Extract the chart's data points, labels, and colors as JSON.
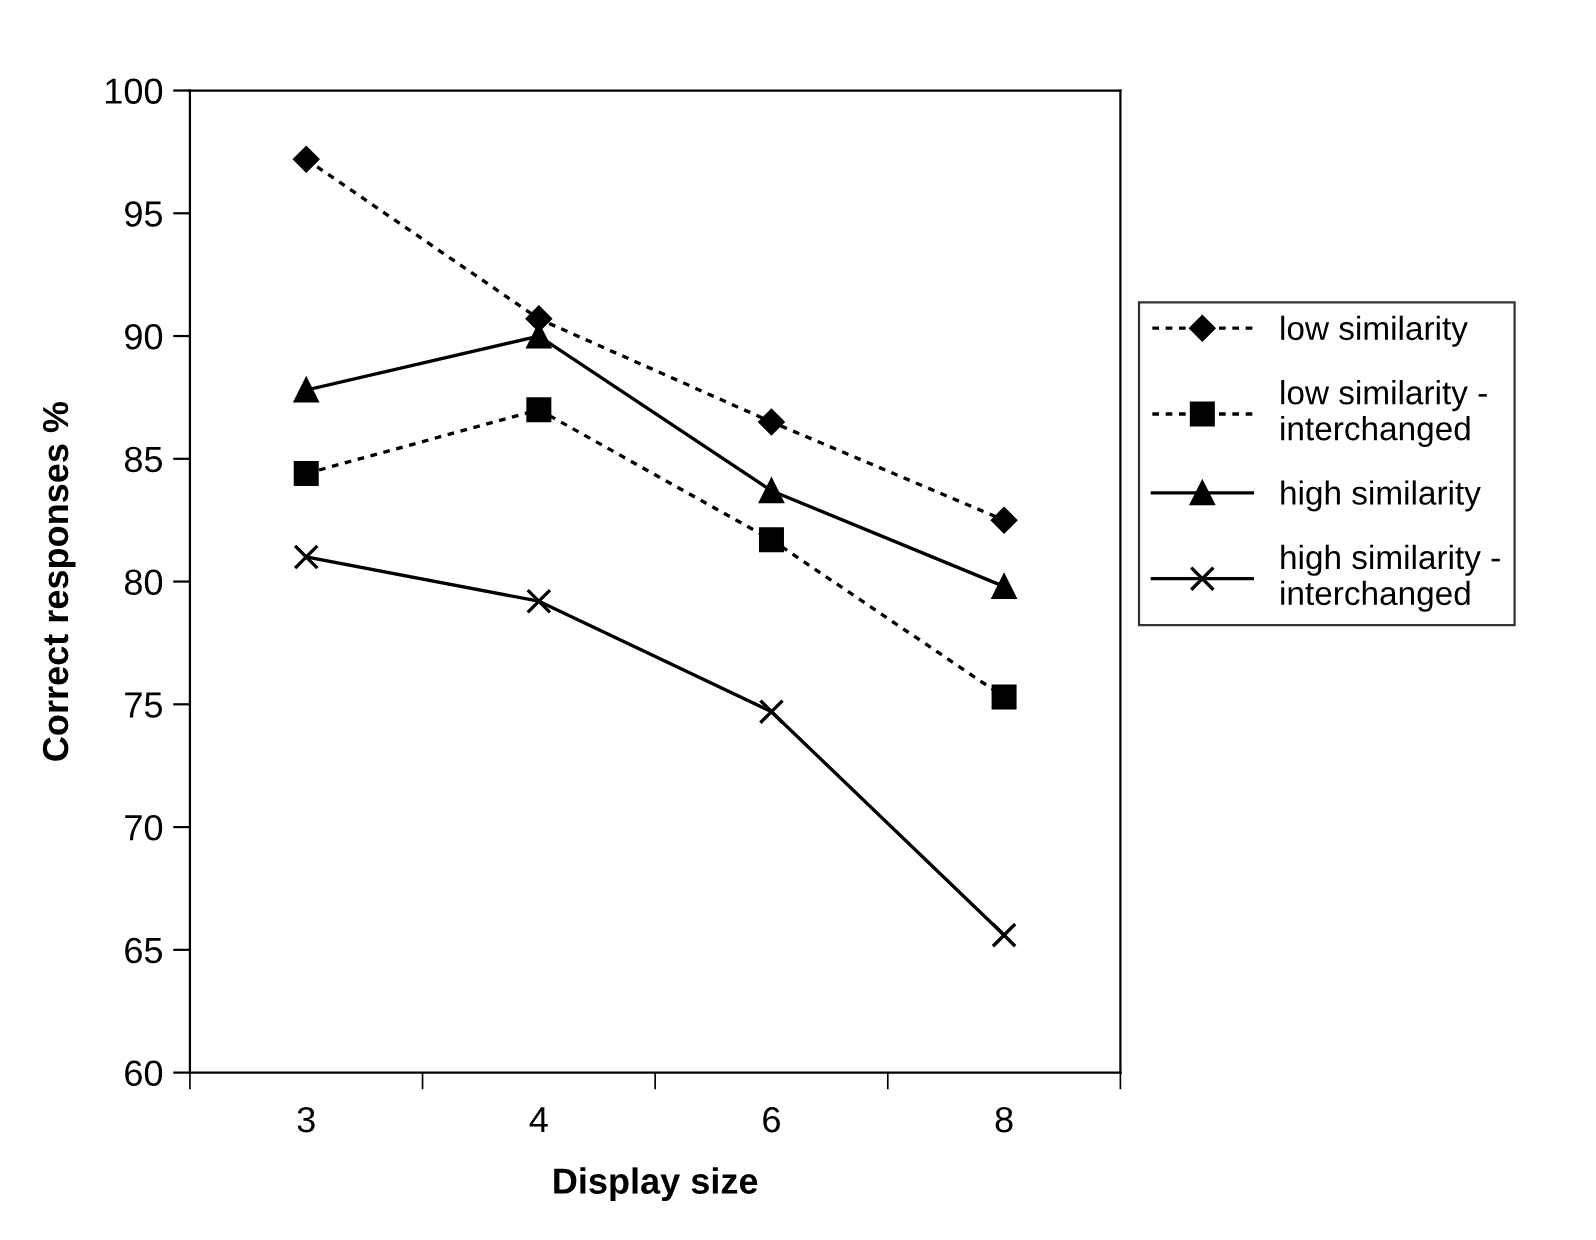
{
  "chart_data": {
    "type": "line",
    "xlabel": "Display size",
    "ylabel": "Correct responses %",
    "categories": [
      "3",
      "4",
      "6",
      "8"
    ],
    "ylim": [
      60,
      100
    ],
    "yticks": [
      60,
      65,
      70,
      75,
      80,
      85,
      90,
      95,
      100
    ],
    "grid": false,
    "legend": "right",
    "series": [
      {
        "name": "low similarity",
        "color": "#000000",
        "values": [
          97.2,
          90.7,
          86.5,
          82.5
        ],
        "marker": "diamond",
        "line_style": "dashed"
      },
      {
        "name": "low similarity - interchanged",
        "color": "#000000",
        "values": [
          84.4,
          87.0,
          81.7,
          75.3
        ],
        "marker": "square",
        "line_style": "dashed"
      },
      {
        "name": "high similarity",
        "color": "#000000",
        "values": [
          87.8,
          90.0,
          83.7,
          79.8
        ],
        "marker": "triangle",
        "line_style": "solid"
      },
      {
        "name": "high similarity - interchanged",
        "color": "#000000",
        "values": [
          81.0,
          79.2,
          74.7,
          65.6
        ],
        "marker": "cross",
        "line_style": "solid"
      }
    ]
  }
}
